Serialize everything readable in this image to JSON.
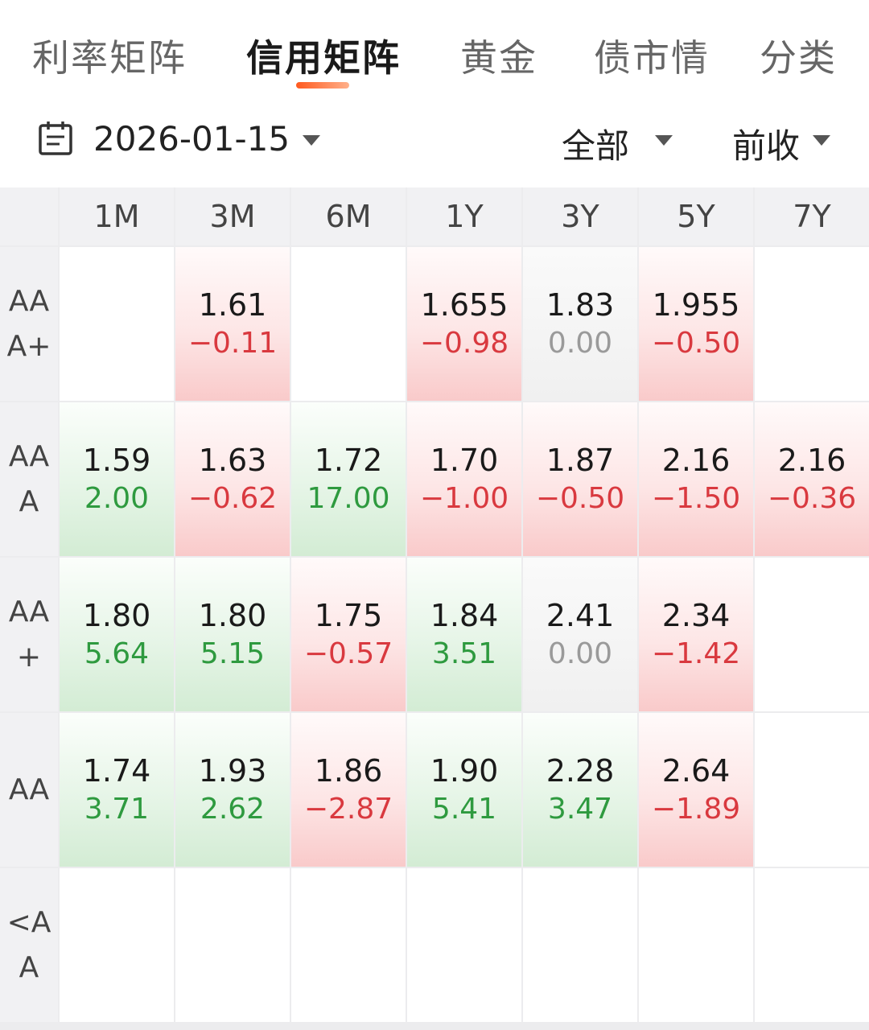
{
  "tabs": [
    {
      "label": "利率矩阵",
      "active": false
    },
    {
      "label": "信用矩阵",
      "active": true
    },
    {
      "label": "黄金",
      "active": false
    },
    {
      "label": "债市情",
      "active": false
    },
    {
      "label": "分类",
      "active": false
    }
  ],
  "filter": {
    "date": "2026-01-15",
    "scope": "全部",
    "basis": "前收"
  },
  "colors": {
    "up": "#d9393f",
    "down": "#2e9a3f",
    "flat": "#9a9a9a",
    "accent": "#ff5a1f"
  },
  "matrix": {
    "columns": [
      "1M",
      "3M",
      "6M",
      "1Y",
      "3Y",
      "5Y",
      "7Y"
    ],
    "rows": [
      {
        "label_lines": [
          "AA",
          "A+"
        ],
        "cells": [
          null,
          {
            "value": "1.61",
            "change": "-0.11"
          },
          null,
          {
            "value": "1.655",
            "change": "-0.98"
          },
          {
            "value": "1.83",
            "change": "0.00"
          },
          {
            "value": "1.955",
            "change": "-0.50"
          },
          null
        ]
      },
      {
        "label_lines": [
          "AA",
          "A"
        ],
        "cells": [
          {
            "value": "1.59",
            "change": "2.00"
          },
          {
            "value": "1.63",
            "change": "-0.62"
          },
          {
            "value": "1.72",
            "change": "17.00"
          },
          {
            "value": "1.70",
            "change": "-1.00"
          },
          {
            "value": "1.87",
            "change": "-0.50"
          },
          {
            "value": "2.16",
            "change": "-1.50"
          },
          {
            "value": "2.16",
            "change": "-0.36"
          }
        ]
      },
      {
        "label_lines": [
          "AA",
          "+"
        ],
        "cells": [
          {
            "value": "1.80",
            "change": "5.64"
          },
          {
            "value": "1.80",
            "change": "5.15"
          },
          {
            "value": "1.75",
            "change": "-0.57"
          },
          {
            "value": "1.84",
            "change": "3.51"
          },
          {
            "value": "2.41",
            "change": "0.00"
          },
          {
            "value": "2.34",
            "change": "-1.42"
          },
          null
        ]
      },
      {
        "label_lines": [
          "AA"
        ],
        "cells": [
          {
            "value": "1.74",
            "change": "3.71"
          },
          {
            "value": "1.93",
            "change": "2.62"
          },
          {
            "value": "1.86",
            "change": "-2.87"
          },
          {
            "value": "1.90",
            "change": "5.41"
          },
          {
            "value": "2.28",
            "change": "3.47"
          },
          {
            "value": "2.64",
            "change": "-1.89"
          },
          null
        ]
      },
      {
        "label_lines": [
          "<A",
          "A"
        ],
        "cells": [
          null,
          null,
          null,
          null,
          null,
          null,
          null
        ]
      }
    ]
  }
}
